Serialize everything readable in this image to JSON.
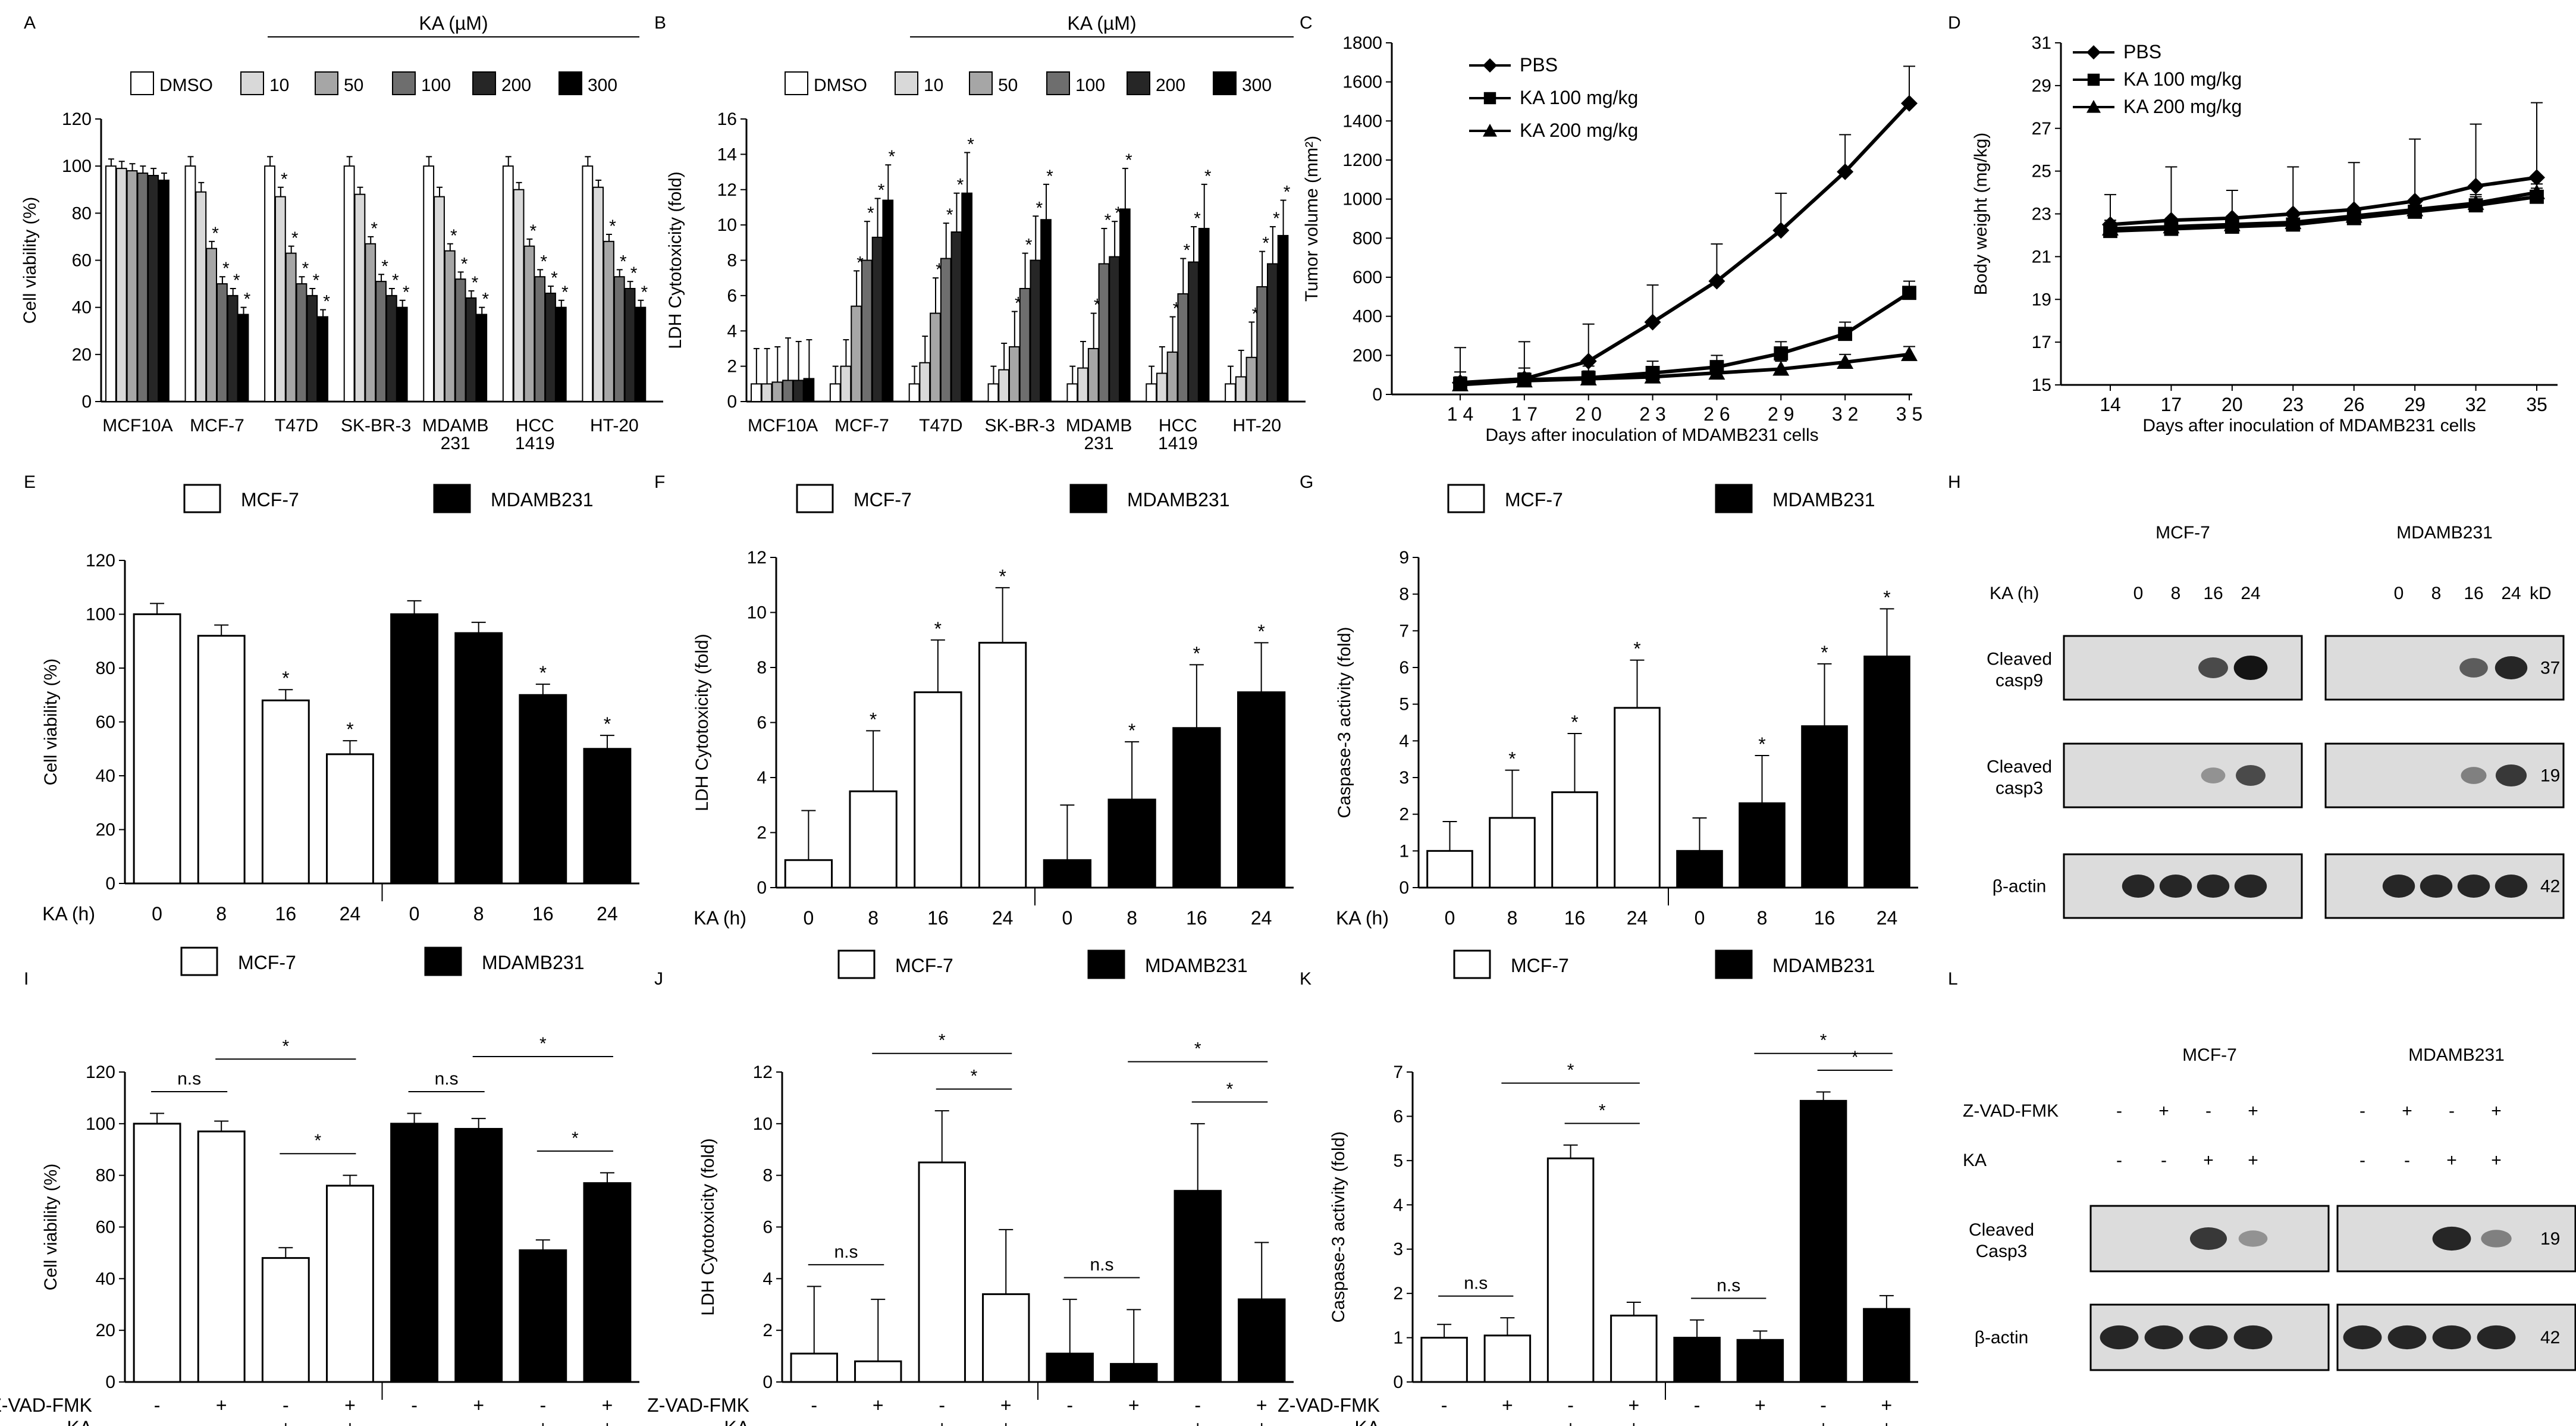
{
  "figure": {
    "panel_labels": [
      "A",
      "B",
      "C",
      "D",
      "E",
      "F",
      "G",
      "H",
      "I",
      "J",
      "K",
      "L"
    ],
    "ka_header": "KA (µM)",
    "kd_label": "kD"
  },
  "chart_data": [
    {
      "panel": "A",
      "type": "bar",
      "ylabel": "Cell viability (%)",
      "ylim": [
        0,
        120
      ],
      "yticks": [
        0,
        20,
        40,
        60,
        80,
        100,
        120
      ],
      "legend": [
        "DMSO",
        "10",
        "50",
        "100",
        "200",
        "300"
      ],
      "fills": [
        "#ffffff",
        "#d9d9d9",
        "#a6a6a6",
        "#6e6e6e",
        "#262626",
        "#000000"
      ],
      "categories": [
        "MCF10A",
        "MCF-7",
        "T47D",
        "SK-BR-3",
        "MDAMB\n231",
        "HCC\n1419",
        "HT-20"
      ],
      "values": [
        [
          100,
          99,
          98,
          97,
          96,
          94
        ],
        [
          100,
          89,
          65,
          50,
          45,
          37
        ],
        [
          100,
          87,
          63,
          50,
          45,
          36
        ],
        [
          100,
          88,
          67,
          51,
          45,
          40
        ],
        [
          100,
          87,
          64,
          52,
          44,
          37
        ],
        [
          100,
          90,
          66,
          53,
          46,
          40
        ],
        [
          100,
          91,
          68,
          53,
          48,
          40
        ]
      ],
      "errors": [
        [
          3,
          3,
          3,
          3,
          3,
          3
        ],
        [
          4,
          4,
          3,
          3,
          3,
          3
        ],
        [
          4,
          4,
          3,
          3,
          3,
          3
        ],
        [
          4,
          3,
          3,
          3,
          3,
          3
        ],
        [
          4,
          4,
          3,
          3,
          3,
          3
        ],
        [
          4,
          3,
          3,
          3,
          3,
          3
        ],
        [
          4,
          3,
          3,
          3,
          3,
          3
        ]
      ],
      "stars": [
        [
          0,
          0,
          0,
          0,
          0,
          0
        ],
        [
          0,
          0,
          1,
          1,
          1,
          1
        ],
        [
          0,
          1,
          1,
          1,
          1,
          1
        ],
        [
          0,
          0,
          1,
          1,
          1,
          1
        ],
        [
          0,
          0,
          1,
          1,
          1,
          1
        ],
        [
          0,
          0,
          1,
          1,
          1,
          1
        ],
        [
          0,
          0,
          1,
          1,
          1,
          1
        ]
      ]
    },
    {
      "panel": "B",
      "type": "bar",
      "ylabel": "LDH Cytotoxicity (fold)",
      "ylim": [
        0,
        16
      ],
      "yticks": [
        0,
        2,
        4,
        6,
        8,
        10,
        12,
        14,
        16
      ],
      "legend": [
        "DMSO",
        "10",
        "50",
        "100",
        "200",
        "300"
      ],
      "fills": [
        "#ffffff",
        "#d9d9d9",
        "#a6a6a6",
        "#6e6e6e",
        "#262626",
        "#000000"
      ],
      "categories": [
        "MCF10A",
        "MCF-7",
        "T47D",
        "SK-BR-3",
        "MDAMB\n231",
        "HCC\n1419",
        "HT-20"
      ],
      "values": [
        [
          1,
          1,
          1.1,
          1.2,
          1.2,
          1.3
        ],
        [
          1,
          2,
          5.4,
          8,
          9.3,
          11.4
        ],
        [
          1,
          2.2,
          5,
          8.1,
          9.6,
          11.8
        ],
        [
          1,
          1.8,
          3.1,
          6.4,
          8,
          10.3
        ],
        [
          1,
          1.9,
          3,
          7.8,
          8.2,
          10.9
        ],
        [
          1,
          1.6,
          2.8,
          6.1,
          7.9,
          9.8
        ],
        [
          1,
          1.4,
          2.5,
          6.5,
          7.8,
          9.4
        ]
      ],
      "errors": [
        [
          2,
          2,
          2,
          2.4,
          2.2,
          2.2
        ],
        [
          1,
          1.5,
          2,
          2.2,
          2.2,
          2
        ],
        [
          1,
          1.5,
          2,
          2,
          2.2,
          2.3
        ],
        [
          1,
          1.5,
          2,
          2,
          2.5,
          2
        ],
        [
          1,
          1.5,
          2,
          2,
          2,
          2.3
        ],
        [
          1,
          1.5,
          2,
          2,
          2,
          2.5
        ],
        [
          1,
          1.5,
          2,
          2,
          2.1,
          2
        ]
      ],
      "stars": [
        [
          0,
          0,
          0,
          0,
          0,
          0
        ],
        [
          0,
          0,
          1,
          1,
          1,
          1
        ],
        [
          0,
          0,
          1,
          1,
          1,
          1
        ],
        [
          0,
          0,
          1,
          1,
          1,
          1
        ],
        [
          0,
          0,
          1,
          1,
          1,
          1
        ],
        [
          0,
          0,
          1,
          1,
          1,
          1
        ],
        [
          0,
          0,
          1,
          1,
          1,
          1
        ]
      ]
    },
    {
      "panel": "C",
      "type": "line",
      "ylabel": "Tumor volume (mm²)",
      "xlabel": "Days after inoculation of MDAMB231  cells",
      "ylim": [
        0,
        1800
      ],
      "yticks": [
        0,
        200,
        400,
        600,
        800,
        1000,
        1200,
        1400,
        1600,
        1800
      ],
      "x": [
        14,
        17,
        20,
        23,
        26,
        29,
        32,
        35
      ],
      "xtick_labels": [
        "1 4",
        "1 7",
        "2 0",
        "2 3",
        "2 6",
        "2 9",
        "3 2",
        "3 5"
      ],
      "series": [
        {
          "name": "PBS",
          "marker": "diamond",
          "values": [
            60,
            80,
            170,
            370,
            580,
            840,
            1140,
            1490
          ],
          "errors": [
            180,
            190,
            190,
            190,
            190,
            190,
            190,
            190
          ]
        },
        {
          "name": "KA 100 mg/kg",
          "marker": "square",
          "values": [
            55,
            75,
            85,
            110,
            140,
            210,
            310,
            520
          ],
          "errors": [
            60,
            60,
            60,
            60,
            60,
            60,
            60,
            60
          ]
        },
        {
          "name": "KA 200 mg/kg",
          "marker": "triangle",
          "values": [
            50,
            70,
            80,
            90,
            110,
            130,
            165,
            205
          ],
          "errors": [
            40,
            40,
            40,
            40,
            40,
            40,
            40,
            40
          ]
        }
      ]
    },
    {
      "panel": "D",
      "type": "line",
      "ylabel": "Body weight (mg/kg)",
      "xlabel": "Days after inoculation of MDAMB231  cells",
      "ylim": [
        15,
        31
      ],
      "yticks": [
        15,
        17,
        19,
        21,
        23,
        25,
        27,
        29,
        31
      ],
      "x": [
        14,
        17,
        20,
        23,
        26,
        29,
        32,
        35
      ],
      "xtick_labels": [
        "14",
        "17",
        "20",
        "23",
        "26",
        "29",
        "32",
        "35"
      ],
      "series": [
        {
          "name": "PBS",
          "marker": "diamond",
          "values": [
            22.5,
            22.7,
            22.8,
            23,
            23.2,
            23.6,
            24.3,
            24.7
          ],
          "errors": [
            1.4,
            2.5,
            1.3,
            2.2,
            2.2,
            2.9,
            2.9,
            3.5
          ]
        },
        {
          "name": "KA 100 mg/kg",
          "marker": "square",
          "values": [
            22.2,
            22.3,
            22.4,
            22.5,
            22.8,
            23.1,
            23.4,
            23.8
          ],
          "errors": [
            0.4,
            0.4,
            0.4,
            0.4,
            0.4,
            0.4,
            0.4,
            0.4
          ]
        },
        {
          "name": "KA 200 mg/kg",
          "marker": "triangle",
          "values": [
            22.3,
            22.4,
            22.5,
            22.6,
            22.9,
            23.2,
            23.5,
            24
          ],
          "errors": [
            0.4,
            0.4,
            0.4,
            0.4,
            0.4,
            0.4,
            0.4,
            0.4
          ]
        }
      ]
    },
    {
      "panel": "E",
      "type": "bar",
      "ylabel": "Cell viability (%)",
      "ylim": [
        0,
        120
      ],
      "yticks": [
        0,
        20,
        40,
        60,
        80,
        100,
        120
      ],
      "legend": [
        "MCF-7",
        "MDAMB231"
      ],
      "row_label": "KA (h)",
      "categories": [
        "0",
        "8",
        "16",
        "24",
        "0",
        "8",
        "16",
        "24"
      ],
      "values": [
        100,
        92,
        68,
        48,
        100,
        93,
        70,
        50
      ],
      "errors": [
        4,
        4,
        4,
        5,
        5,
        4,
        4,
        5
      ],
      "stars": [
        0,
        0,
        1,
        1,
        0,
        0,
        1,
        1
      ]
    },
    {
      "panel": "F",
      "type": "bar",
      "ylabel": "LDH Cytotoxicity (fold)",
      "ylim": [
        0,
        12
      ],
      "yticks": [
        0,
        2,
        4,
        6,
        8,
        10,
        12
      ],
      "legend": [
        "MCF-7",
        "MDAMB231"
      ],
      "row_label": "KA (h)",
      "categories": [
        "0",
        "8",
        "16",
        "24",
        "0",
        "8",
        "16",
        "24"
      ],
      "values": [
        1,
        3.5,
        7.1,
        8.9,
        1,
        3.2,
        5.8,
        7.1
      ],
      "errors": [
        1.8,
        2.2,
        1.9,
        2,
        2,
        2.1,
        2.3,
        1.8
      ],
      "stars": [
        0,
        1,
        1,
        1,
        0,
        1,
        1,
        1
      ]
    },
    {
      "panel": "G",
      "type": "bar",
      "ylabel": "Caspase-3 activity (fold)",
      "ylim": [
        0,
        9
      ],
      "yticks": [
        0,
        1,
        2,
        3,
        4,
        5,
        6,
        7,
        8,
        9
      ],
      "legend": [
        "MCF-7",
        "MDAMB231"
      ],
      "row_label": "KA (h)",
      "categories": [
        "0",
        "8",
        "16",
        "24",
        "0",
        "8",
        "16",
        "24"
      ],
      "values": [
        1,
        1.9,
        2.6,
        4.9,
        1,
        2.3,
        4.4,
        6.3
      ],
      "errors": [
        0.8,
        1.3,
        1.6,
        1.3,
        0.9,
        1.3,
        1.7,
        1.3
      ],
      "stars": [
        0,
        1,
        1,
        1,
        0,
        1,
        1,
        1
      ]
    },
    {
      "panel": "I",
      "type": "bar",
      "ylabel": "Cell viability (%)",
      "ylim": [
        0,
        120
      ],
      "yticks": [
        0,
        20,
        40,
        60,
        80,
        100,
        120
      ],
      "legend": [
        "MCF-7",
        "MDAMB231"
      ],
      "row_labels": [
        "Z-VAD-FMK",
        "KA"
      ],
      "treatments": [
        [
          "-",
          "+",
          "-",
          "+",
          "-",
          "+",
          "-",
          "+"
        ],
        [
          "-",
          "-",
          "+",
          "+",
          "-",
          "-",
          "+",
          "+"
        ]
      ],
      "values": [
        100,
        97,
        48,
        76,
        100,
        98,
        51,
        77
      ],
      "errors": [
        4,
        4,
        4,
        4,
        4,
        4,
        4,
        4
      ],
      "brackets": [
        {
          "from": 0,
          "to": 1,
          "label": "n.s"
        },
        {
          "from": 2,
          "to": 3,
          "label": "*"
        },
        {
          "from": 1,
          "to": 3,
          "label": "*"
        },
        {
          "from": 4,
          "to": 5,
          "label": "n.s"
        },
        {
          "from": 6,
          "to": 7,
          "label": "*"
        },
        {
          "from": 5,
          "to": 7,
          "label": "*"
        }
      ]
    },
    {
      "panel": "J",
      "type": "bar",
      "ylabel": "LDH Cytotoxicity (fold)",
      "ylim": [
        0,
        12
      ],
      "yticks": [
        0,
        2,
        4,
        6,
        8,
        10,
        12
      ],
      "legend": [
        "MCF-7",
        "MDAMB231"
      ],
      "row_labels": [
        "Z-VAD-FMK",
        "KA"
      ],
      "treatments": [
        [
          "-",
          "+",
          "-",
          "+",
          "-",
          "+",
          "-",
          "+"
        ],
        [
          "-",
          "-",
          "+",
          "+",
          "-",
          "-",
          "+",
          "+"
        ]
      ],
      "values": [
        1.1,
        0.8,
        8.5,
        3.4,
        1.1,
        0.7,
        7.4,
        3.2
      ],
      "errors": [
        2.6,
        2.4,
        2,
        2.5,
        2.1,
        2.1,
        2.6,
        2.2
      ],
      "brackets": [
        {
          "from": 0,
          "to": 1,
          "label": "n.s"
        },
        {
          "from": 2,
          "to": 3,
          "label": "*"
        },
        {
          "from": 1,
          "to": 3,
          "label": "*"
        },
        {
          "from": 4,
          "to": 5,
          "label": "n.s"
        },
        {
          "from": 6,
          "to": 7,
          "label": "*"
        },
        {
          "from": 5,
          "to": 7,
          "label": "*"
        }
      ]
    },
    {
      "panel": "K",
      "type": "bar",
      "ylabel": "Caspase-3 activity (fold)",
      "ylim": [
        0,
        7
      ],
      "yticks": [
        0,
        1,
        2,
        3,
        4,
        5,
        6,
        7
      ],
      "legend": [
        "MCF-7",
        "MDAMB231"
      ],
      "row_labels": [
        "Z-VAD-FMK",
        "KA"
      ],
      "treatments": [
        [
          "-",
          "+",
          "-",
          "+",
          "-",
          "+",
          "-",
          "+"
        ],
        [
          "-",
          "-",
          "+",
          "+",
          "-",
          "-",
          "+",
          "+"
        ]
      ],
      "values": [
        1,
        1.05,
        5.05,
        1.5,
        1,
        0.95,
        6.35,
        1.65
      ],
      "errors": [
        0.3,
        0.4,
        0.3,
        0.3,
        0.4,
        0.2,
        0.2,
        0.3
      ],
      "brackets": [
        {
          "from": 0,
          "to": 1,
          "label": "n.s"
        },
        {
          "from": 2,
          "to": 3,
          "label": "*"
        },
        {
          "from": 1,
          "to": 3,
          "label": "*"
        },
        {
          "from": 4,
          "to": 5,
          "label": "n.s"
        },
        {
          "from": 6,
          "to": 7,
          "label": "*"
        },
        {
          "from": 5,
          "to": 7,
          "label": "*"
        }
      ]
    }
  ],
  "blots": [
    {
      "panel": "H",
      "cell_lines": [
        "MCF-7",
        "MDAMB231"
      ],
      "header_label": "KA (h)",
      "lane_labels": [
        "0",
        "8",
        "16",
        "24"
      ],
      "rows": [
        {
          "label": "Cleaved\ncasp9",
          "kd": "37",
          "intensity": [
            [
              0,
              0,
              0.7,
              1
            ],
            [
              0,
              0,
              0.6,
              0.9
            ]
          ]
        },
        {
          "label": "Cleaved\ncasp3",
          "kd": "19",
          "intensity": [
            [
              0,
              0,
              0.3,
              0.7
            ],
            [
              0,
              0,
              0.4,
              0.8
            ]
          ]
        },
        {
          "label": "β-actin",
          "kd": "42",
          "intensity": [
            [
              0.9,
              0.9,
              0.9,
              0.9
            ],
            [
              0.9,
              0.9,
              0.9,
              0.9
            ]
          ]
        }
      ]
    },
    {
      "panel": "L",
      "cell_lines": [
        "MCF-7",
        "MDAMB231"
      ],
      "header_rows": [
        {
          "label": "Z-VAD-FMK",
          "signs": [
            "-",
            "+",
            "-",
            "+"
          ]
        },
        {
          "label": "KA",
          "signs": [
            "-",
            "-",
            "+",
            "+"
          ]
        }
      ],
      "rows": [
        {
          "label": "Cleaved\nCasp3",
          "kd": "19",
          "intensity": [
            [
              0,
              0,
              0.8,
              0.3
            ],
            [
              0,
              0,
              0.9,
              0.4
            ]
          ]
        },
        {
          "label": "β-actin",
          "kd": "42",
          "intensity": [
            [
              0.9,
              0.9,
              0.9,
              0.9
            ],
            [
              0.9,
              0.9,
              0.9,
              0.9
            ]
          ]
        }
      ]
    }
  ]
}
